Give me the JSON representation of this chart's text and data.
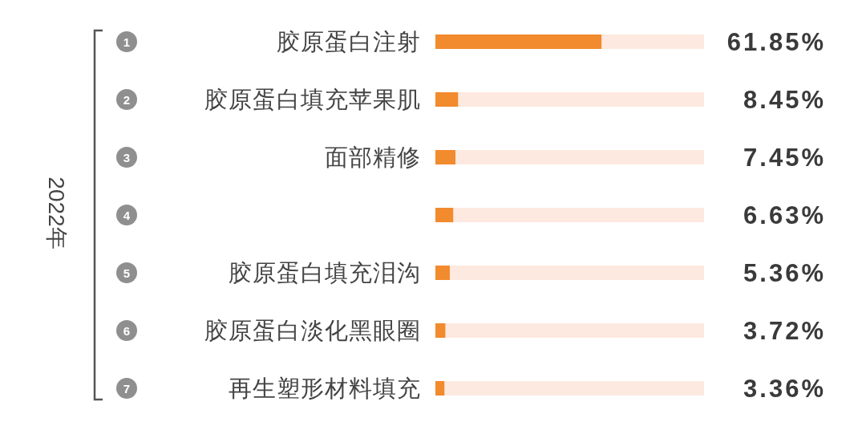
{
  "chart_data": {
    "type": "bar",
    "orientation": "horizontal",
    "categories": [
      "胶原蛋白注射",
      "胶原蛋白填充苹果肌",
      "面部精修",
      null,
      "胶原蛋白填充泪沟",
      "胶原蛋白淡化黑眼圈",
      "再生塑形材料填充"
    ],
    "values": [
      61.85,
      8.45,
      7.45,
      6.63,
      5.36,
      3.72,
      3.36
    ],
    "value_labels": [
      "61.85%",
      "8.45%",
      "7.45%",
      "6.63%",
      "5.36%",
      "3.72%",
      "3.36%"
    ],
    "annotations": [
      "1",
      "2",
      "3",
      "4",
      "5",
      "6",
      "7",
      "2022年"
    ],
    "xlim": [
      0,
      100
    ],
    "color": "#f28a2e",
    "tick_labels": false
  }
}
